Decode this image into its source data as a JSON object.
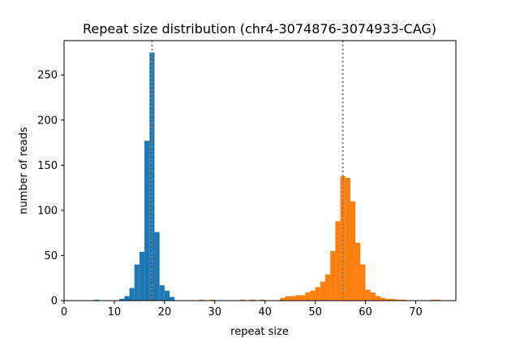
{
  "chart_data": {
    "type": "bar",
    "title": "Repeat size distribution (chr4-3074876-3074933-CAG)",
    "xlabel": "repeat size",
    "ylabel": "number of reads",
    "xlim": [
      0,
      78
    ],
    "ylim": [
      0,
      288
    ],
    "xticks": [
      0,
      10,
      20,
      30,
      40,
      50,
      60,
      70
    ],
    "yticks": [
      0,
      50,
      100,
      150,
      200,
      250
    ],
    "grid": false,
    "legend": "none",
    "bin_width": 1,
    "reference_lines": [
      17.5,
      55.5
    ],
    "reference_line_color": "#808080",
    "series": [
      {
        "color": "#1f77b4",
        "bins": [
          {
            "x": 6,
            "y": 1
          },
          {
            "x": 11,
            "y": 2
          },
          {
            "x": 12,
            "y": 5
          },
          {
            "x": 13,
            "y": 14
          },
          {
            "x": 14,
            "y": 40
          },
          {
            "x": 15,
            "y": 54
          },
          {
            "x": 16,
            "y": 177
          },
          {
            "x": 17,
            "y": 275
          },
          {
            "x": 18,
            "y": 76
          },
          {
            "x": 19,
            "y": 17
          },
          {
            "x": 20,
            "y": 11
          },
          {
            "x": 21,
            "y": 4
          }
        ]
      },
      {
        "color": "#ff7f0e",
        "bins": [
          {
            "x": 27,
            "y": 1
          },
          {
            "x": 29,
            "y": 1
          },
          {
            "x": 35,
            "y": 1
          },
          {
            "x": 37,
            "y": 1
          },
          {
            "x": 39,
            "y": 1
          },
          {
            "x": 43,
            "y": 3
          },
          {
            "x": 44,
            "y": 5
          },
          {
            "x": 45,
            "y": 5
          },
          {
            "x": 46,
            "y": 6
          },
          {
            "x": 47,
            "y": 6
          },
          {
            "x": 48,
            "y": 9
          },
          {
            "x": 49,
            "y": 11
          },
          {
            "x": 50,
            "y": 15
          },
          {
            "x": 51,
            "y": 21
          },
          {
            "x": 52,
            "y": 29
          },
          {
            "x": 53,
            "y": 55
          },
          {
            "x": 54,
            "y": 88
          },
          {
            "x": 55,
            "y": 138
          },
          {
            "x": 56,
            "y": 136
          },
          {
            "x": 57,
            "y": 110
          },
          {
            "x": 58,
            "y": 64
          },
          {
            "x": 59,
            "y": 40
          },
          {
            "x": 60,
            "y": 12
          },
          {
            "x": 61,
            "y": 9
          },
          {
            "x": 62,
            "y": 5
          },
          {
            "x": 63,
            "y": 3
          },
          {
            "x": 64,
            "y": 2
          },
          {
            "x": 65,
            "y": 2
          },
          {
            "x": 66,
            "y": 1
          },
          {
            "x": 67,
            "y": 1
          },
          {
            "x": 73,
            "y": 1
          },
          {
            "x": 74,
            "y": 1
          }
        ]
      }
    ]
  }
}
